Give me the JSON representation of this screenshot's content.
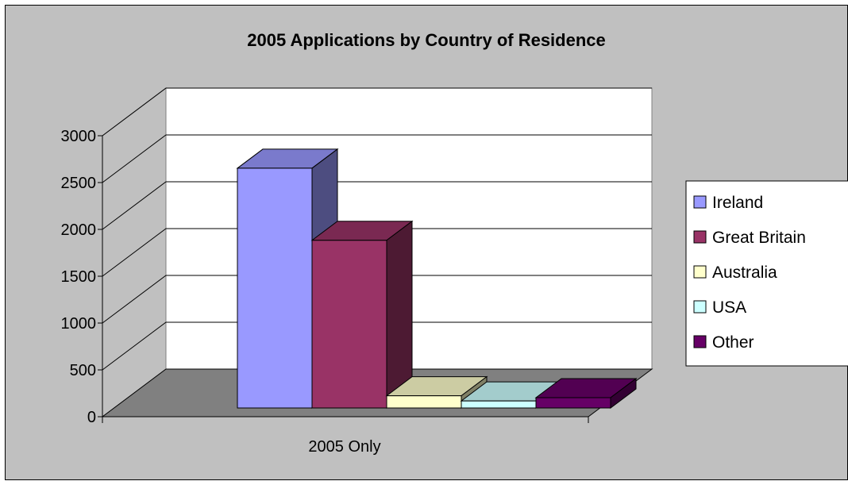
{
  "chart_data": {
    "type": "bar",
    "title": "2005 Applications by Country of Residence",
    "categories": [
      "2005 Only"
    ],
    "series": [
      {
        "name": "Ireland",
        "values": [
          2560
        ],
        "color": "#9999ff"
      },
      {
        "name": "Great Britain",
        "values": [
          1790
        ],
        "color": "#993366"
      },
      {
        "name": "Australia",
        "values": [
          130
        ],
        "color": "#ffffcc"
      },
      {
        "name": "USA",
        "values": [
          75
        ],
        "color": "#ccffff"
      },
      {
        "name": "Other",
        "values": [
          110
        ],
        "color": "#660066"
      }
    ],
    "ylim": [
      0,
      3000
    ],
    "yticks": [
      0,
      500,
      1000,
      1500,
      2000,
      2500,
      3000
    ],
    "xlabel": "",
    "ylabel": "",
    "grid": true,
    "legend_position": "right",
    "background_color": "#c0c0c0",
    "plot_wall_color": "#ffffff",
    "floor_color": "#808080"
  }
}
